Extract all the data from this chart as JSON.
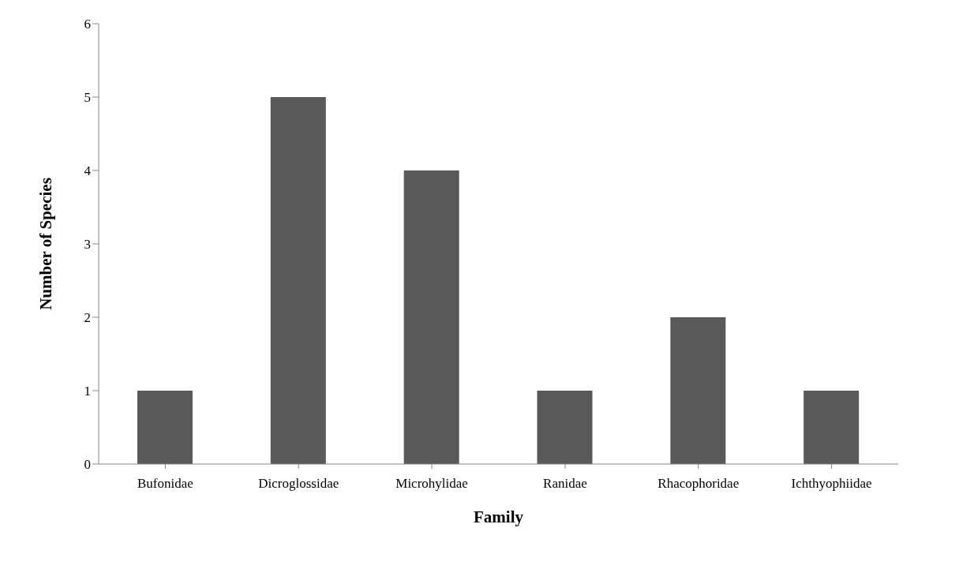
{
  "chart_data": {
    "type": "bar",
    "xlabel": "Family",
    "ylabel": "Number of Species",
    "categories": [
      "Bufonidae",
      "Dicroglossidae",
      "Microhylidae",
      "Ranidae",
      "Rhacophoridae",
      "Ichthyophiidae"
    ],
    "values": [
      1,
      5,
      4,
      1,
      2,
      1
    ],
    "color": "#595959",
    "ylim": [
      0,
      6
    ],
    "yticks": [
      0,
      1,
      2,
      3,
      4,
      5,
      6
    ],
    "grid": false,
    "legend": false
  }
}
